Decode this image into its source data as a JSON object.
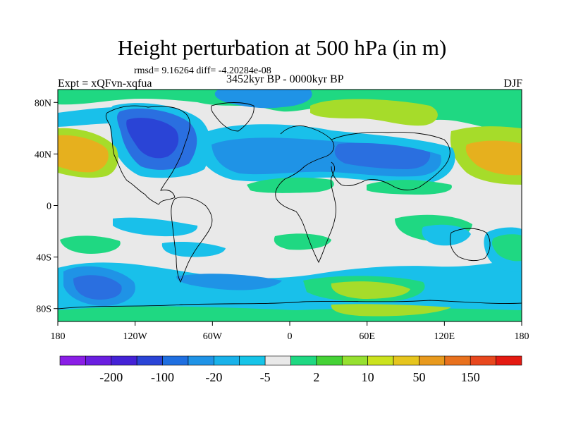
{
  "title": "Height perturbation at 500 hPa (in m)",
  "stats": "rmsd= 9.16264 diff= -4.20284e-08",
  "experiment": "Expt = xQFvn-xqfua",
  "period": "3452kyr BP - 0000kyr BP",
  "season": "DJF",
  "lat_ticks": [
    {
      "lat": 80,
      "label": "80N"
    },
    {
      "lat": 40,
      "label": "40N"
    },
    {
      "lat": 0,
      "label": "0"
    },
    {
      "lat": -40,
      "label": "40S"
    },
    {
      "lat": -80,
      "label": "80S"
    }
  ],
  "lon_ticks": [
    {
      "lon": -180,
      "label": "180"
    },
    {
      "lon": -120,
      "label": "120W"
    },
    {
      "lon": -60,
      "label": "60W"
    },
    {
      "lon": 0,
      "label": "0"
    },
    {
      "lon": 60,
      "label": "60E"
    },
    {
      "lon": 120,
      "label": "120E"
    },
    {
      "lon": 180,
      "label": "180"
    }
  ],
  "colorbar": {
    "colors": [
      "#8a1ee6",
      "#6a1ee0",
      "#4422d6",
      "#2a44d6",
      "#1f6fe0",
      "#1f93e6",
      "#19b2ea",
      "#16c4e8",
      "#e9e9e9",
      "#1fd882",
      "#45d236",
      "#96e030",
      "#cbe21e",
      "#e6c51e",
      "#e89a1e",
      "#e8711e",
      "#e8481e",
      "#e41a12"
    ],
    "labels": [
      {
        "after": 1,
        "text": "-200"
      },
      {
        "after": 3,
        "text": "-100"
      },
      {
        "after": 5,
        "text": "-20"
      },
      {
        "after": 7,
        "text": "-5"
      },
      {
        "after": 9,
        "text": "2"
      },
      {
        "after": 11,
        "text": "10"
      },
      {
        "after": 13,
        "text": "50"
      },
      {
        "after": 15,
        "text": "150"
      }
    ]
  },
  "colors": {
    "neutral": "#e9e9e9",
    "cyan": "#19c0ea",
    "light_blue": "#1f93e6",
    "blue": "#2a6fe0",
    "dark_blue": "#2a44d6",
    "green": "#1fd882",
    "yellow_green": "#a6dc2a",
    "yellow": "#d8d420",
    "orange": "#e6b01e",
    "coast": "#000000"
  }
}
